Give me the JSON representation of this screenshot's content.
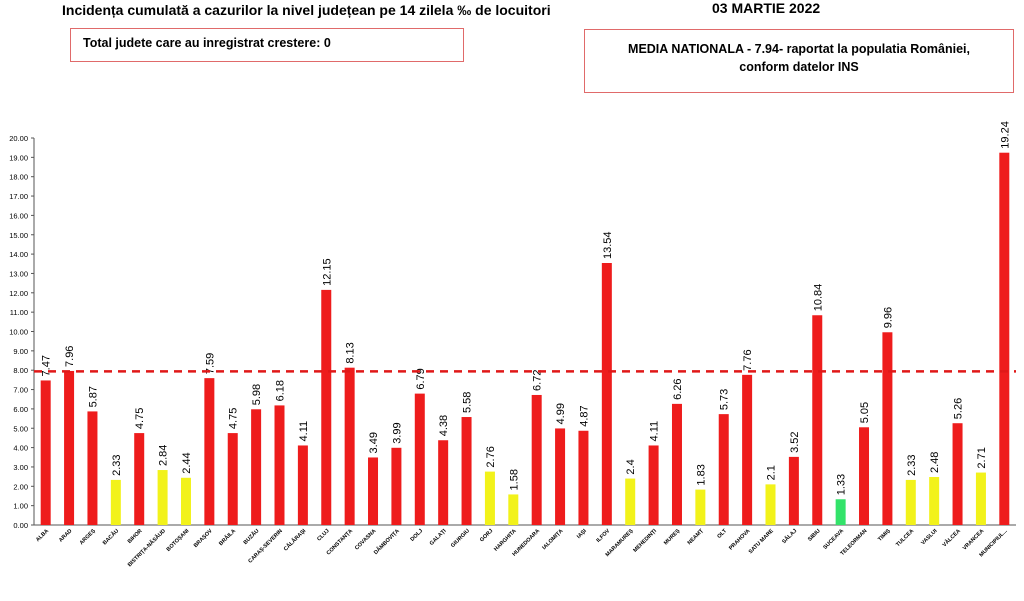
{
  "header": {
    "title": "Incidența cumulată a cazurilor la nivel județean pe 14 zilela ‰ de locuitori",
    "date": "03 MARTIE 2022"
  },
  "info": {
    "total_increase": "Total judete care au inregistrat crestere: 0",
    "national_average_line1": "MEDIA NATIONALA - 7.94-  raportat la populatia României,",
    "national_average_line2": "conform datelor INS"
  },
  "chart_data": {
    "type": "bar",
    "categories": [
      "ALBA",
      "ARAD",
      "ARGEȘ",
      "BACĂU",
      "BIHOR",
      "BISTRIȚA-NĂSĂUD",
      "BOTOȘANI",
      "BRAȘOV",
      "BRĂILA",
      "BUZĂU",
      "CARAȘ-SEVERIN",
      "CĂLĂRAȘI",
      "CLUJ",
      "CONSTANȚA",
      "COVASNA",
      "DÂMBOVIȚA",
      "DOLJ",
      "GALAȚI",
      "GIURGIU",
      "GORJ",
      "HARGHITA",
      "HUNEDOARA",
      "IALOMIȚA",
      "IAȘI",
      "ILFOV",
      "MARAMUREȘ",
      "MEHEDINȚI",
      "MUREȘ",
      "NEAMȚ",
      "OLT",
      "PRAHOVA",
      "SATU MARE",
      "SĂLAJ",
      "SIBIU",
      "SUCEAVA",
      "TELEORMAN",
      "TIMIȘ",
      "TULCEA",
      "VASLUI",
      "VÂLCEA",
      "VRANCEA",
      "MUNICIPIUL..."
    ],
    "values": [
      7.47,
      7.96,
      5.87,
      2.33,
      4.75,
      2.84,
      2.44,
      7.59,
      4.75,
      5.98,
      6.18,
      4.11,
      12.15,
      8.13,
      3.49,
      3.99,
      6.79,
      4.38,
      5.58,
      2.76,
      1.58,
      6.72,
      4.99,
      4.87,
      13.54,
      2.4,
      4.11,
      6.26,
      1.83,
      5.73,
      7.76,
      2.1,
      3.52,
      10.84,
      1.33,
      5.05,
      9.96,
      2.33,
      2.48,
      5.26,
      2.71,
      19.24
    ],
    "value_labels": [
      "7.47",
      "7.96",
      "5.87",
      "2.33",
      "4.75",
      "2.84",
      "2.44",
      "7.59",
      "4.75",
      "5.98",
      "6.18",
      "4.11",
      "12.15",
      "8.13",
      "3.49",
      "3.99",
      "6.79",
      "4.38",
      "5.58",
      "2.76",
      "1.58",
      "6.72",
      "4.99",
      "4.87",
      "13.54",
      "2.4",
      "4.11",
      "6.26",
      "1.83",
      "5.73",
      "7.76",
      "2.1",
      "3.52",
      "10.84",
      "1.33",
      "5.05",
      "9.96",
      "2.33",
      "2.48",
      "5.26",
      "2.71",
      "19.24"
    ],
    "y_ticks": [
      "0.00",
      "1.00",
      "2.00",
      "3.00",
      "4.00",
      "5.00",
      "6.00",
      "7.00",
      "8.00",
      "9.00",
      "10.00",
      "11.00",
      "12.00",
      "13.00",
      "14.00",
      "15.00",
      "16.00",
      "17.00",
      "18.00",
      "19.00",
      "20.00"
    ],
    "ylim": [
      0,
      20
    ],
    "reference_line": 7.94,
    "colors": {
      "above_3": "#ee1c1c",
      "between_1_5_and_3": "#f2f21a",
      "below_1_5": "#33e36a",
      "reference": "#e01818"
    },
    "grid": false
  }
}
